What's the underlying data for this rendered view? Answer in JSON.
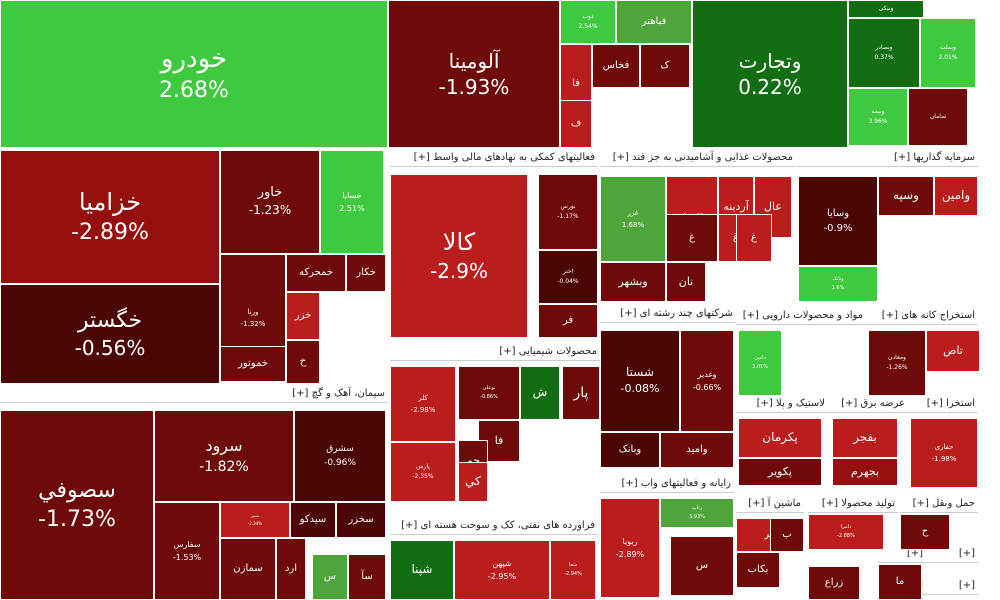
{
  "colors": {
    "dg": "#136e13",
    "g": "#4ea63b",
    "lg": "#3ec93e",
    "br": "#6e0a0a",
    "dr": "#960f0f",
    "r": "#bb1c1c",
    "k": "#4b0606"
  },
  "chart_data": {
    "type": "treemap",
    "sectors": [
      {
        "title": "سیمان، آهک و گچ [+]"
      },
      {
        "title": "فعالیتهای کمکی به نهادهای مالی واسط [+]"
      },
      {
        "title": "محصولات غذایی و آشامیدنی به جز قند [+]"
      },
      {
        "title": "سرمایه گذاریها [+]"
      },
      {
        "title": "محصولات شیمیایی [+]"
      },
      {
        "title": "شرکتهای چند رشته ای [+]"
      },
      {
        "title": "مواد و محصولات دارویی [+]"
      },
      {
        "title": "استخراج کانه های [+]"
      },
      {
        "title": "لاستیک و پلا [+]"
      },
      {
        "title": "عرضه برق [+]"
      },
      {
        "title": "استخرا [+]"
      },
      {
        "title": "رایانه و فعالیتهای واب [+]"
      },
      {
        "title": "فراورده های نفتی، کک و سوخت هسته ای [+]"
      },
      {
        "title": "ماشین آ [+]"
      },
      {
        "title": "تولید محصولا [+]"
      },
      {
        "title": "حمل ونقل [+]"
      },
      {
        "title": "[+]"
      },
      {
        "title": "[+]"
      },
      {
        "title": "[+]"
      },
      {
        "title": "[+]"
      }
    ],
    "tiles": [
      {
        "name": "خودرو",
        "value": "2.68%",
        "c": "lg"
      },
      {
        "name": "آلومینا",
        "value": "-1.93%",
        "c": "br"
      },
      {
        "name": "وتجارت",
        "value": "0.22%",
        "c": "dg"
      },
      {
        "name": "خزامیا",
        "value": "-2.89%",
        "c": "dr"
      },
      {
        "name": "خگستر",
        "value": "-0.56%",
        "c": "k"
      },
      {
        "name": "خاور",
        "value": "-1.23%",
        "c": "br"
      },
      {
        "name": "خسایا",
        "value": "2.51%",
        "c": "lg"
      },
      {
        "name": "ورنا",
        "value": "-1.32%",
        "c": "br"
      },
      {
        "name": "خمحرکه",
        "value": "",
        "c": "br"
      },
      {
        "name": "خکار",
        "value": "",
        "c": "br"
      },
      {
        "name": "خزر",
        "value": "",
        "c": "r"
      },
      {
        "name": "خموتور",
        "value": "",
        "c": "br"
      },
      {
        "name": "خ",
        "value": "",
        "c": "br"
      },
      {
        "name": "ذوب",
        "value": "2.54%",
        "c": "lg"
      },
      {
        "name": "فباهنر",
        "value": "",
        "c": "g"
      },
      {
        "name": "ک",
        "value": "",
        "c": "br"
      },
      {
        "name": "فخاس",
        "value": "",
        "c": "br"
      },
      {
        "name": "فا",
        "value": "",
        "c": "r"
      },
      {
        "name": "ف",
        "value": "",
        "c": "r"
      },
      {
        "name": "ونیکی",
        "value": "",
        "c": "dg"
      },
      {
        "name": "وبصادر",
        "value": "0.37%",
        "c": "dg"
      },
      {
        "name": "وبملت",
        "value": "2.01%",
        "c": "lg"
      },
      {
        "name": "وبیمه",
        "value": "3.96%",
        "c": "lg"
      },
      {
        "name": "سامان",
        "value": "",
        "c": "br"
      },
      {
        "name": "کالا",
        "value": "-2.9%",
        "c": "r"
      },
      {
        "name": "بورس",
        "value": "-1.17%",
        "c": "br"
      },
      {
        "name": "اختر",
        "value": "-0.04%",
        "c": "k"
      },
      {
        "name": "فر",
        "value": "",
        "c": "br"
      },
      {
        "name": "غزر",
        "value": "1.68%",
        "c": "g"
      },
      {
        "name": "غاليزان",
        "value": "",
        "c": "r"
      },
      {
        "name": "آردینه",
        "value": "",
        "c": "r"
      },
      {
        "name": "عال",
        "value": "",
        "c": "r"
      },
      {
        "name": "غ",
        "value": "",
        "c": "br"
      },
      {
        "name": "غ",
        "value": "",
        "c": "r"
      },
      {
        "name": "غ",
        "value": "",
        "c": "r"
      },
      {
        "name": "نان",
        "value": "",
        "c": "br"
      },
      {
        "name": "وبشهر",
        "value": "",
        "c": "br"
      },
      {
        "name": "وامین",
        "value": "",
        "c": "r"
      },
      {
        "name": "وسپه",
        "value": "",
        "c": "br"
      },
      {
        "name": "وسایا",
        "value": "-0.9%",
        "c": "k"
      },
      {
        "name": "وبانک",
        "value": "1.6%",
        "c": "lg"
      },
      {
        "name": "کلر",
        "value": "-2.98%",
        "c": "r"
      },
      {
        "name": "بوعلی",
        "value": "-0.86%",
        "c": "br"
      },
      {
        "name": "ش",
        "value": "",
        "c": "dg"
      },
      {
        "name": "پار",
        "value": "",
        "c": "br"
      },
      {
        "name": "فا",
        "value": "",
        "c": "br"
      },
      {
        "name": "جم",
        "value": "",
        "c": "br"
      },
      {
        "name": "پارس",
        "value": "-2.35%",
        "c": "r"
      },
      {
        "name": "کي",
        "value": "",
        "c": "r"
      },
      {
        "name": "شستا",
        "value": "-0.08%",
        "c": "k"
      },
      {
        "name": "وغدیر",
        "value": "-0.66%",
        "c": "br"
      },
      {
        "name": "وامید",
        "value": "",
        "c": "br"
      },
      {
        "name": "وبانک",
        "value": "",
        "c": "k"
      },
      {
        "name": "دامین",
        "value": "3.01%",
        "c": "lg"
      },
      {
        "name": "تاص",
        "value": "",
        "c": "r"
      },
      {
        "name": "ومعادن",
        "value": "-1.26%",
        "c": "br"
      },
      {
        "name": "پاسا",
        "value": "",
        "c": "r"
      },
      {
        "name": "پکرمان",
        "value": "",
        "c": "r"
      },
      {
        "name": "پکویر",
        "value": "",
        "c": "br"
      },
      {
        "name": "بفجر",
        "value": "",
        "c": "r"
      },
      {
        "name": "بجهرم",
        "value": "",
        "c": "dr"
      },
      {
        "name": "حفاری",
        "value": "-1.98%",
        "c": "r"
      },
      {
        "name": "سرود",
        "value": "-1.82%",
        "c": "br"
      },
      {
        "name": "سشرق",
        "value": "-0.96%",
        "c": "k"
      },
      {
        "name": "سصوفي",
        "value": "-1.73%",
        "c": "br"
      },
      {
        "name": "سفارس",
        "value": "-1.53%",
        "c": "br"
      },
      {
        "name": "سیدکو",
        "value": "",
        "c": "k"
      },
      {
        "name": "سخزر",
        "value": "",
        "c": "k"
      },
      {
        "name": "سمازن",
        "value": "",
        "c": "br"
      },
      {
        "name": "ارد",
        "value": "",
        "c": "br"
      },
      {
        "name": "س",
        "value": "",
        "c": "g"
      },
      {
        "name": "سآ",
        "value": "",
        "c": "br"
      },
      {
        "name": "سنیر",
        "value": "-2.34%",
        "c": "r"
      },
      {
        "name": "رتاپ",
        "value": "3.93%",
        "c": "g"
      },
      {
        "name": "ریویا",
        "value": "-2.89%",
        "c": "r"
      },
      {
        "name": "س",
        "value": "",
        "c": "br"
      },
      {
        "name": "شپهن",
        "value": "-2.95%",
        "c": "r"
      },
      {
        "name": "شپنا",
        "value": "",
        "c": "dg"
      },
      {
        "name": "شعا",
        "value": "-2.94%",
        "c": "r"
      },
      {
        "name": "بتر",
        "value": "",
        "c": "r"
      },
      {
        "name": "ب",
        "value": "",
        "c": "br"
      },
      {
        "name": "بکاب",
        "value": "",
        "c": "br"
      },
      {
        "name": "دامرا",
        "value": "-2.88%",
        "c": "r"
      },
      {
        "name": "زراع",
        "value": "",
        "c": "br"
      },
      {
        "name": "ما",
        "value": "",
        "c": "br"
      },
      {
        "name": "ح",
        "value": "",
        "c": "br"
      }
    ]
  }
}
